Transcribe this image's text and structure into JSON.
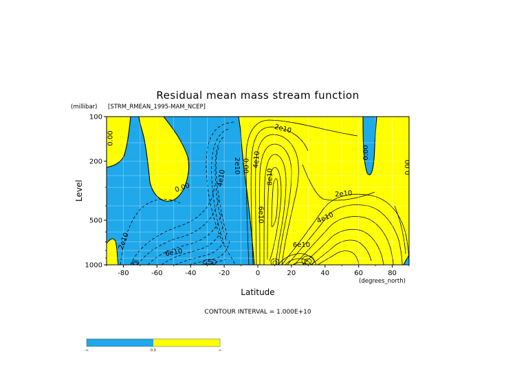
{
  "chart_data": {
    "type": "contour",
    "title": "Residual mean mass stream function",
    "subtitle": "[STRM_RMEAN_1995-MAM_NCEP]",
    "y_units": "(millibar)",
    "x_units": "(degrees_north)",
    "xlabel": "Latitude",
    "ylabel": "Level",
    "xlim": [
      -90,
      90
    ],
    "ylim": [
      1000,
      100
    ],
    "y_scale": "log",
    "x_ticks": [
      -80,
      -60,
      -40,
      -20,
      0,
      20,
      40,
      60,
      80
    ],
    "y_ticks": [
      100,
      200,
      500,
      1000
    ],
    "grid": true,
    "contour_interval_text": "CONTOUR INTERVAL = 1.000E+10",
    "contour_interval": 10000000000,
    "fill_colors": {
      "negative": "#1fa8ea",
      "positive": "#ffff00"
    },
    "contour_labels": [
      {
        "text": "0.00",
        "lat": -88,
        "p": 140
      },
      {
        "text": "0.00",
        "lat": -45,
        "p": 300
      },
      {
        "text": "0.00",
        "lat": -7,
        "p": 215
      },
      {
        "text": "0.00",
        "lat": 64,
        "p": 175
      },
      {
        "text": "0.00",
        "lat": 89,
        "p": 220
      },
      {
        "text": "2e10",
        "lat": -12,
        "p": 215
      },
      {
        "text": "4e10",
        "lat": -22,
        "p": 260
      },
      {
        "text": "2e10",
        "lat": -80,
        "p": 690
      },
      {
        "text": "6e10",
        "lat": -50,
        "p": 820
      },
      {
        "text": "2e10",
        "lat": 15,
        "p": 120
      },
      {
        "text": "4e10",
        "lat": -1,
        "p": 195
      },
      {
        "text": "8e10",
        "lat": 7,
        "p": 255
      },
      {
        "text": "6e10",
        "lat": 2,
        "p": 460
      },
      {
        "text": "2e10",
        "lat": 51,
        "p": 330
      },
      {
        "text": "4e10",
        "lat": 40,
        "p": 480
      },
      {
        "text": "6e10",
        "lat": 26,
        "p": 730
      }
    ],
    "colorbar": {
      "labels": [
        "-∞",
        "0.0",
        "∞"
      ],
      "colors": [
        "#1fa8ea",
        "#ffff00"
      ]
    }
  }
}
